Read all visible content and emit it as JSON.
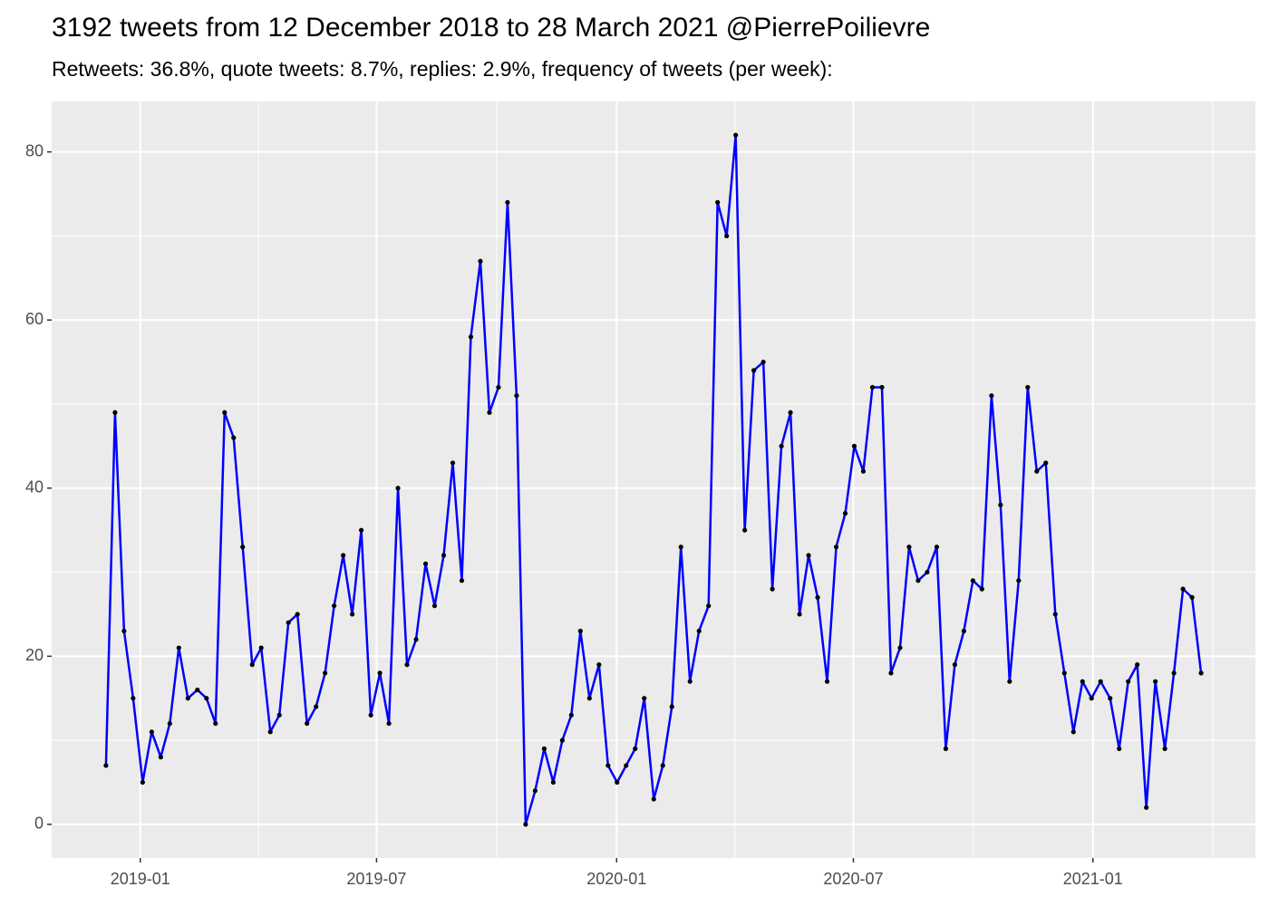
{
  "chart_data": {
    "type": "line",
    "title": "3192 tweets from 12 December 2018 to 28 March 2021 @PierrePoilievre",
    "subtitle": "Retweets: 36.8%, quote tweets: 8.7%, replies: 2.9%, frequency of tweets (per week):",
    "x": [
      2018.928,
      2018.947,
      2018.966,
      2018.985,
      2019.005,
      2019.024,
      2019.043,
      2019.062,
      2019.081,
      2019.1,
      2019.12,
      2019.139,
      2019.158,
      2019.177,
      2019.196,
      2019.215,
      2019.235,
      2019.254,
      2019.273,
      2019.292,
      2019.311,
      2019.33,
      2019.35,
      2019.369,
      2019.388,
      2019.407,
      2019.426,
      2019.445,
      2019.464,
      2019.484,
      2019.503,
      2019.522,
      2019.541,
      2019.56,
      2019.579,
      2019.599,
      2019.618,
      2019.637,
      2019.656,
      2019.675,
      2019.694,
      2019.714,
      2019.733,
      2019.752,
      2019.771,
      2019.79,
      2019.809,
      2019.829,
      2019.848,
      2019.867,
      2019.886,
      2019.905,
      2019.924,
      2019.943,
      2019.963,
      2019.982,
      2020.001,
      2020.02,
      2020.039,
      2020.058,
      2020.078,
      2020.097,
      2020.116,
      2020.135,
      2020.154,
      2020.173,
      2020.193,
      2020.212,
      2020.231,
      2020.25,
      2020.269,
      2020.288,
      2020.308,
      2020.327,
      2020.346,
      2020.365,
      2020.384,
      2020.403,
      2020.422,
      2020.442,
      2020.461,
      2020.48,
      2020.499,
      2020.518,
      2020.537,
      2020.557,
      2020.576,
      2020.595,
      2020.614,
      2020.633,
      2020.652,
      2020.672,
      2020.691,
      2020.71,
      2020.729,
      2020.748,
      2020.767,
      2020.787,
      2020.806,
      2020.825,
      2020.844,
      2020.863,
      2020.882,
      2020.901,
      2020.921,
      2020.94,
      2020.959,
      2020.978,
      2020.997,
      2021.016,
      2021.036,
      2021.055,
      2021.074,
      2021.093,
      2021.112,
      2021.131,
      2021.151,
      2021.17,
      2021.189,
      2021.208,
      2021.227
    ],
    "series": [
      {
        "name": "tweets",
        "color": "#0000ff",
        "marker_color": "#000000",
        "values": [
          7,
          49,
          23,
          15,
          5,
          11,
          8,
          12,
          21,
          15,
          16,
          15,
          12,
          49,
          46,
          33,
          19,
          21,
          11,
          13,
          24,
          25,
          12,
          14,
          18,
          26,
          32,
          25,
          35,
          13,
          18,
          12,
          40,
          19,
          22,
          31,
          26,
          32,
          43,
          29,
          58,
          67,
          49,
          52,
          74,
          51,
          0,
          4,
          9,
          5,
          10,
          13,
          23,
          15,
          19,
          7,
          5,
          7,
          9,
          15,
          3,
          7,
          14,
          33,
          17,
          23,
          26,
          74,
          70,
          82,
          35,
          54,
          55,
          28,
          45,
          49,
          25,
          32,
          27,
          17,
          33,
          37,
          45,
          42,
          52,
          52,
          18,
          21,
          33,
          29,
          30,
          33,
          9,
          19,
          23,
          29,
          28,
          51,
          38,
          17,
          29,
          52,
          42,
          43,
          25,
          18,
          11,
          17,
          15,
          17,
          15,
          9,
          17,
          19,
          2,
          17,
          9,
          18,
          28,
          27,
          18
        ]
      }
    ],
    "xlim": [
      2018.814,
      2021.341
    ],
    "xticks": [
      {
        "value": 2019.0,
        "label": "2019-01"
      },
      {
        "value": 2019.496,
        "label": "2019-07"
      },
      {
        "value": 2020.0,
        "label": "2020-01"
      },
      {
        "value": 2020.497,
        "label": "2020-07"
      },
      {
        "value": 2021.0,
        "label": "2021-01"
      }
    ],
    "ylim": [
      -4,
      86
    ],
    "yticks": [
      0,
      20,
      40,
      60,
      80
    ],
    "grid": true
  }
}
